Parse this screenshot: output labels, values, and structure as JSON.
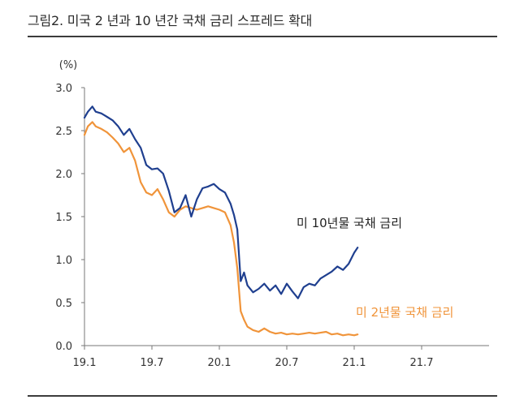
{
  "figure": {
    "title": "그림2. 미국 2 년과 10 년간 국채 금리 스프레드 확대"
  },
  "chart_data": {
    "type": "line",
    "title": "그림2. 미국 2 년과 10 년간 국채 금리 스프레드 확대",
    "ylabel": "(%)",
    "xlabel": "",
    "ylim": [
      0.0,
      3.0
    ],
    "yticks": [
      0.0,
      0.5,
      1.0,
      1.5,
      2.0,
      2.5,
      3.0
    ],
    "ytick_labels": [
      "0.0",
      "0.5",
      "1.0",
      "1.5",
      "2.0",
      "2.5",
      "3.0"
    ],
    "xlim": [
      0,
      36
    ],
    "xticks": [
      0,
      6,
      12,
      18,
      24,
      30
    ],
    "xtick_labels": [
      "19.1",
      "19.7",
      "20.1",
      "20.7",
      "21.1",
      "21.7"
    ],
    "x_unit": "months since 2019-01",
    "series": [
      {
        "name": "미 10년물 국채 금리",
        "color": "#1f3f8f",
        "x": [
          0,
          0.3,
          0.7,
          1,
          1.5,
          2,
          2.5,
          3,
          3.5,
          4,
          4.5,
          5,
          5.5,
          6,
          6.5,
          7,
          7.5,
          8,
          8.5,
          9,
          9.5,
          10,
          10.5,
          11,
          11.5,
          12,
          12.5,
          13,
          13.3,
          13.6,
          13.9,
          14.2,
          14.5,
          15,
          15.5,
          16,
          16.5,
          17,
          17.5,
          18,
          18.5,
          19,
          19.5,
          20,
          20.5,
          21,
          21.5,
          22,
          22.5,
          23,
          23.5,
          24,
          24.3
        ],
        "values": [
          2.65,
          2.72,
          2.78,
          2.72,
          2.7,
          2.66,
          2.62,
          2.55,
          2.45,
          2.52,
          2.4,
          2.3,
          2.1,
          2.05,
          2.06,
          2.0,
          1.8,
          1.55,
          1.6,
          1.75,
          1.5,
          1.7,
          1.83,
          1.85,
          1.88,
          1.82,
          1.78,
          1.65,
          1.52,
          1.35,
          0.75,
          0.85,
          0.7,
          0.62,
          0.66,
          0.72,
          0.64,
          0.7,
          0.6,
          0.72,
          0.63,
          0.55,
          0.68,
          0.72,
          0.7,
          0.78,
          0.82,
          0.86,
          0.92,
          0.88,
          0.95,
          1.08,
          1.14
        ]
      },
      {
        "name": "미 2년물 국채 금리",
        "color": "#f0943a",
        "x": [
          0,
          0.3,
          0.7,
          1,
          1.5,
          2,
          2.5,
          3,
          3.5,
          4,
          4.5,
          5,
          5.5,
          6,
          6.5,
          7,
          7.5,
          8,
          8.5,
          9,
          9.5,
          10,
          10.5,
          11,
          11.5,
          12,
          12.5,
          13,
          13.3,
          13.6,
          13.9,
          14.2,
          14.5,
          15,
          15.5,
          16,
          16.5,
          17,
          17.5,
          18,
          18.5,
          19,
          19.5,
          20,
          20.5,
          21,
          21.5,
          22,
          22.5,
          23,
          23.5,
          24,
          24.3
        ],
        "values": [
          2.45,
          2.55,
          2.6,
          2.55,
          2.52,
          2.48,
          2.42,
          2.35,
          2.25,
          2.3,
          2.15,
          1.9,
          1.78,
          1.75,
          1.82,
          1.7,
          1.55,
          1.5,
          1.58,
          1.62,
          1.6,
          1.58,
          1.6,
          1.62,
          1.6,
          1.58,
          1.55,
          1.4,
          1.2,
          0.9,
          0.4,
          0.3,
          0.22,
          0.18,
          0.16,
          0.2,
          0.16,
          0.14,
          0.15,
          0.13,
          0.14,
          0.13,
          0.14,
          0.15,
          0.14,
          0.15,
          0.16,
          0.13,
          0.14,
          0.12,
          0.13,
          0.12,
          0.13
        ]
      }
    ],
    "annotations": [
      {
        "text": "미 10년물 국채 금리",
        "series": 0
      },
      {
        "text": "미 2년물 국채 금리",
        "series": 1
      }
    ]
  }
}
